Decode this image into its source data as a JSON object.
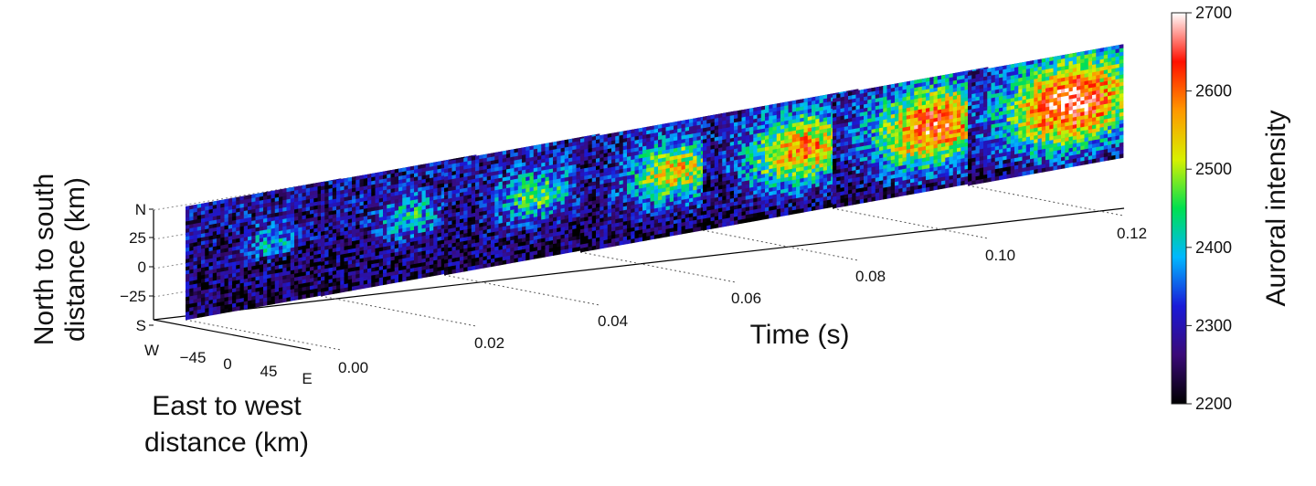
{
  "chart_data": {
    "type": "heatmap",
    "layout_note": "3d",
    "frames_time_s": [
      0.0,
      0.02,
      0.04,
      0.06,
      0.08,
      0.1,
      0.12
    ],
    "peak_intensity_per_frame": [
      2420,
      2440,
      2470,
      2560,
      2600,
      2650,
      2680
    ],
    "background_intensity": 2280,
    "axes": {
      "time": {
        "label": "Time (s)",
        "tick_labels": [
          "0.00",
          "0.02",
          "0.04",
          "0.06",
          "0.08",
          "0.10",
          "0.12"
        ]
      },
      "north_south": {
        "label_line1": "North to south",
        "label_line2": "distance (km)",
        "tick_labels": [
          "N",
          "25",
          "0",
          "−25",
          "S"
        ]
      },
      "east_west": {
        "label_line1": "East to west",
        "label_line2": "distance (km)",
        "tick_labels": [
          "W",
          "−45",
          "0",
          "45",
          "E"
        ]
      }
    },
    "colorbar": {
      "label": "Auroral intensity",
      "min": 2200,
      "max": 2700,
      "tick_labels": [
        "2700",
        "2600",
        "2500",
        "2400",
        "2300",
        "2200"
      ],
      "colors": [
        "#000000",
        "#3a0a78",
        "#1a1ad8",
        "#00b8ff",
        "#00e050",
        "#d8f000",
        "#ff9800",
        "#ff1000",
        "#ffffff"
      ]
    }
  }
}
